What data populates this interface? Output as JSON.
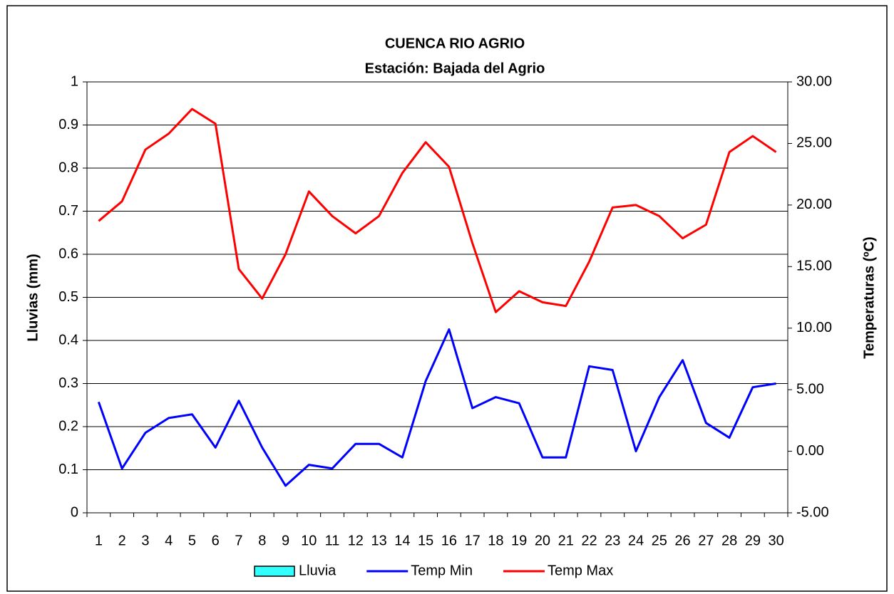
{
  "chart_data": {
    "type": "line",
    "title": "CUENCA RIO AGRIO",
    "subtitle": "Estación: Bajada del Agrio",
    "y_label": "Lluvias (mm)",
    "y2_label": "Temperaturas (ºC)",
    "categories": [
      "1",
      "2",
      "3",
      "4",
      "5",
      "6",
      "7",
      "8",
      "9",
      "10",
      "11",
      "12",
      "13",
      "14",
      "15",
      "16",
      "17",
      "18",
      "19",
      "20",
      "21",
      "22",
      "23",
      "24",
      "25",
      "26",
      "27",
      "28",
      "29",
      "30"
    ],
    "ylim": [
      0,
      1
    ],
    "yticks": [
      0,
      0.1,
      0.2,
      0.3,
      0.4,
      0.5,
      0.6,
      0.7,
      0.8,
      0.9,
      1
    ],
    "y2lim": [
      -5,
      30
    ],
    "y2ticks": [
      {
        "value": -5,
        "label": "-5.00"
      },
      {
        "value": 0,
        "label": "0.00"
      },
      {
        "value": 5,
        "label": "5.00"
      },
      {
        "value": 10,
        "label": "10.00"
      },
      {
        "value": 15,
        "label": "15.00"
      },
      {
        "value": 20,
        "label": "20.00"
      },
      {
        "value": 25,
        "label": "25.00"
      },
      {
        "value": 30,
        "label": "30.00"
      }
    ],
    "grid": true,
    "legend": "bottom",
    "series": [
      {
        "name": "Lluvia",
        "type": "bar",
        "color": "#33ffff",
        "values": [
          0,
          0,
          0,
          0,
          0,
          0,
          0,
          0,
          0,
          0,
          0,
          0,
          0,
          0,
          0,
          0,
          0,
          0,
          0,
          0,
          0,
          0,
          0,
          0,
          0,
          0,
          0,
          0,
          0,
          0
        ]
      },
      {
        "name": "Temp Min",
        "type": "line",
        "axis": "y2",
        "color": "#0000ff",
        "values": [
          4.0,
          -1.4,
          1.5,
          2.7,
          3.0,
          0.3,
          4.1,
          0.3,
          -2.8,
          -1.1,
          -1.4,
          0.6,
          0.6,
          -0.5,
          5.7,
          9.9,
          3.5,
          4.4,
          3.9,
          -0.5,
          -0.5,
          6.9,
          6.6,
          0.0,
          4.4,
          7.4,
          2.3,
          1.1,
          5.2,
          5.5
        ]
      },
      {
        "name": "Temp Max",
        "type": "line",
        "axis": "y2",
        "color": "#ff0000",
        "values": [
          18.7,
          20.3,
          24.5,
          25.8,
          27.8,
          26.6,
          14.8,
          12.4,
          16.0,
          21.1,
          19.1,
          17.7,
          19.1,
          22.6,
          25.1,
          23.1,
          16.9,
          11.3,
          13.0,
          12.1,
          11.8,
          15.4,
          19.8,
          20.0,
          19.1,
          17.3,
          18.4,
          24.3,
          25.6,
          24.3
        ]
      }
    ]
  }
}
